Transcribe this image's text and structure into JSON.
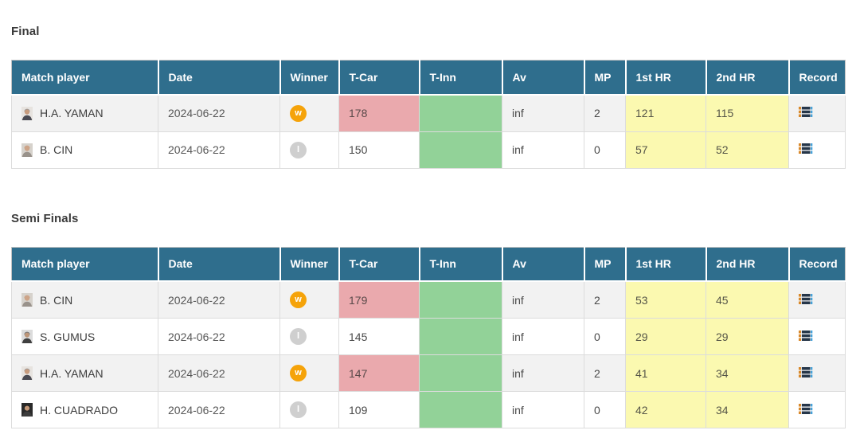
{
  "colors": {
    "header_bg": "#2f6e8d",
    "winner_badge": "#f5a30a",
    "loser_badge": "#cfcfcf",
    "t_car_highlight": "#eaa9ad",
    "t_inn_highlight": "#92d298",
    "hr_highlight": "#fbf9b0",
    "row_alt": "#f2f2f2"
  },
  "icons": {
    "record": "record-list-icon",
    "avatar": "player-avatar-icon"
  },
  "columns": [
    "Match player",
    "Date",
    "Winner",
    "T-Car",
    "T-Inn",
    "Av",
    "MP",
    "1st HR",
    "2nd HR",
    "Record"
  ],
  "sections": [
    {
      "title": "Final",
      "rows": [
        {
          "player": "H.A. YAMAN",
          "date": "2024-06-22",
          "result": "w",
          "t_car": "178",
          "t_car_highlight": true,
          "t_inn": "",
          "av": "inf",
          "mp": "2",
          "hr1": "121",
          "hr2": "115",
          "avatar": {
            "bg": "#e7e3df",
            "head": "#c79b7d",
            "hair": "#9b9b9b",
            "body": "#4a4a52"
          }
        },
        {
          "player": "B. CIN",
          "date": "2024-06-22",
          "result": "l",
          "t_car": "150",
          "t_car_highlight": false,
          "t_inn": "",
          "av": "inf",
          "mp": "0",
          "hr1": "57",
          "hr2": "52",
          "avatar": {
            "bg": "#d6d2cc",
            "head": "#cda488",
            "hair": "#cda488",
            "body": "#99928b"
          }
        }
      ]
    },
    {
      "title": "Semi Finals",
      "rows": [
        {
          "player": "B. CIN",
          "date": "2024-06-22",
          "result": "w",
          "t_car": "179",
          "t_car_highlight": true,
          "t_inn": "",
          "av": "inf",
          "mp": "2",
          "hr1": "53",
          "hr2": "45",
          "avatar": {
            "bg": "#d6d2cc",
            "head": "#cda488",
            "hair": "#cda488",
            "body": "#99928b"
          }
        },
        {
          "player": "S. GUMUS",
          "date": "2024-06-22",
          "result": "l",
          "t_car": "145",
          "t_car_highlight": false,
          "t_inn": "",
          "av": "inf",
          "mp": "0",
          "hr1": "29",
          "hr2": "29",
          "avatar": {
            "bg": "#dcdcdc",
            "head": "#bd9679",
            "hair": "#6f6f6f",
            "body": "#3f3f3f"
          }
        },
        {
          "player": "H.A. YAMAN",
          "date": "2024-06-22",
          "result": "w",
          "t_car": "147",
          "t_car_highlight": true,
          "t_inn": "",
          "av": "inf",
          "mp": "2",
          "hr1": "41",
          "hr2": "34",
          "avatar": {
            "bg": "#e7e3df",
            "head": "#c79b7d",
            "hair": "#9b9b9b",
            "body": "#4a4a52"
          }
        },
        {
          "player": "H. CUADRADO",
          "date": "2024-06-22",
          "result": "l",
          "t_car": "109",
          "t_car_highlight": false,
          "t_inn": "",
          "av": "inf",
          "mp": "0",
          "hr1": "42",
          "hr2": "34",
          "avatar": {
            "bg": "#2a2a2a",
            "head": "#c49878",
            "hair": "#1c1c1c",
            "body": "#3c3c3c"
          }
        }
      ]
    }
  ]
}
